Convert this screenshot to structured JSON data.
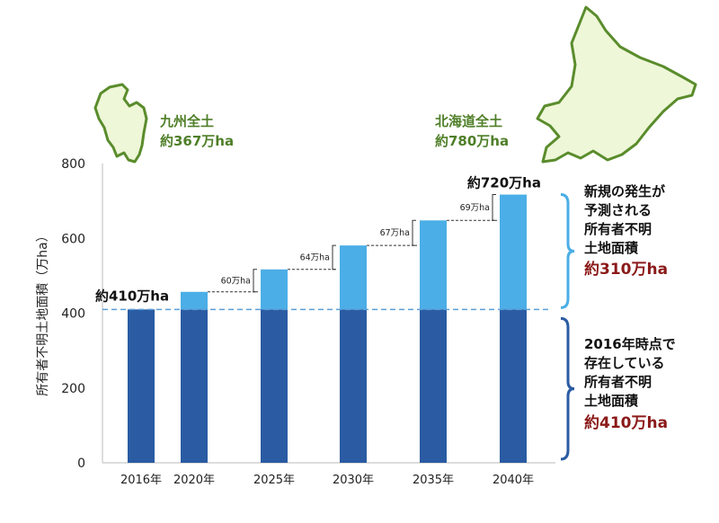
{
  "chart_data": {
    "type": "bar",
    "stacked": true,
    "categories": [
      "2016年",
      "2020年",
      "2025年",
      "2030年",
      "2035年",
      "2040年"
    ],
    "series": [
      {
        "name": "",
        "color": "#2a5ba3",
        "values": [
          410,
          410,
          410,
          410,
          410,
          410
        ]
      },
      {
        "name": "",
        "color": "#4baee6",
        "values": [
          0,
          47,
          107,
          171,
          238,
          307
        ]
      }
    ],
    "ylabel": "所有者不明土地面積（万ha）",
    "ylim": [
      0,
      800
    ],
    "yticks": [
      "0",
      "200",
      "400",
      "600",
      "800"
    ],
    "reference_line": {
      "value": 410,
      "style": "dashed",
      "color": "#5b9fd8"
    },
    "labels": {
      "start": "約410万ha",
      "end": "約720万ha"
    },
    "increments": [
      "60万ha",
      "64万ha",
      "67万ha",
      "69万ha"
    ]
  },
  "references": {
    "kyushu": {
      "name": "九州全土",
      "area": "約367万ha"
    },
    "hokkaido": {
      "name": "北海道全土",
      "area": "約780万ha"
    }
  },
  "annotations": {
    "upper": {
      "lines": [
        "新規の発生が",
        "予測される",
        "所有者不明",
        "土地面積"
      ],
      "value": "約310万ha",
      "brace_color": "#4baee6"
    },
    "lower": {
      "lines": [
        "2016年時点で",
        "存在している",
        "所有者不明",
        "土地面積"
      ],
      "value": "約410万ha",
      "brace_color": "#2a5ba3"
    }
  }
}
